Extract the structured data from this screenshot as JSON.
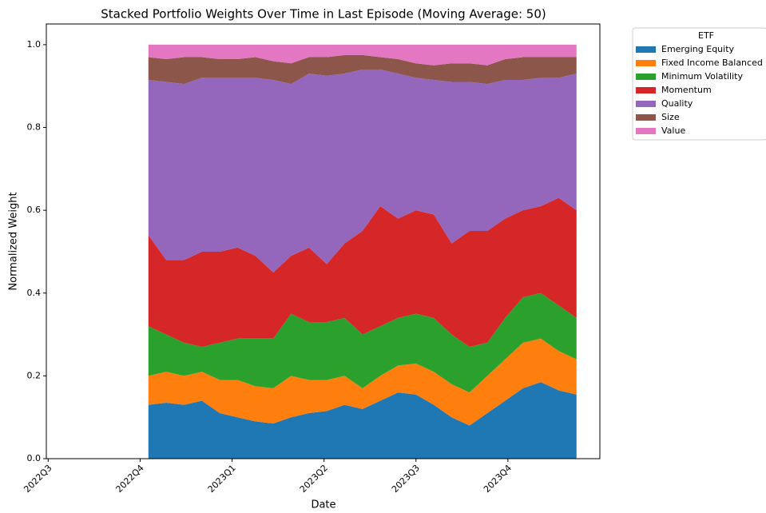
{
  "chart_data": {
    "type": "stacked_area",
    "title": "Stacked Portfolio Weights Over Time in Last Episode (Moving Average: 50)",
    "xlabel": "Date",
    "ylabel": "Normalized Weight",
    "legend_title": "ETF",
    "legend": "outside upper right",
    "x": [
      1.09,
      1.284,
      1.478,
      1.672,
      1.866,
      2.06,
      2.254,
      2.448,
      2.642,
      2.836,
      3.03,
      3.224,
      3.418,
      3.612,
      3.806,
      4.0,
      4.194,
      4.388,
      4.582,
      4.776,
      4.97,
      5.164,
      5.358,
      5.552,
      5.746
    ],
    "xlim": [
      -0.02,
      6.0
    ],
    "xticks": [
      {
        "value": 0,
        "label": "2022Q3"
      },
      {
        "value": 1,
        "label": "2022Q4"
      },
      {
        "value": 2,
        "label": "2023Q1"
      },
      {
        "value": 3,
        "label": "2023Q2"
      },
      {
        "value": 4,
        "label": "2023Q3"
      },
      {
        "value": 5,
        "label": "2023Q4"
      }
    ],
    "ylim": [
      0,
      1.05
    ],
    "yticks": [
      {
        "value": 0,
        "label": "0.0"
      },
      0.2,
      0.4,
      0.6,
      0.8,
      {
        "value": 1,
        "label": "1.0"
      }
    ],
    "series": [
      {
        "name": "Emerging Equity",
        "color": "#1f77b4",
        "values": [
          0.13,
          0.135,
          0.13,
          0.14,
          0.11,
          0.1,
          0.09,
          0.085,
          0.1,
          0.11,
          0.115,
          0.13,
          0.12,
          0.14,
          0.16,
          0.155,
          0.13,
          0.1,
          0.08,
          0.11,
          0.14,
          0.17,
          0.185,
          0.165,
          0.155
        ]
      },
      {
        "name": "Fixed Income Balanced",
        "color": "#ff7f0e",
        "values": [
          0.07,
          0.075,
          0.07,
          0.07,
          0.08,
          0.09,
          0.085,
          0.085,
          0.1,
          0.08,
          0.075,
          0.07,
          0.05,
          0.06,
          0.065,
          0.075,
          0.08,
          0.08,
          0.08,
          0.09,
          0.1,
          0.11,
          0.105,
          0.095,
          0.085
        ]
      },
      {
        "name": "Minimum Volatility",
        "color": "#2ca02c",
        "values": [
          0.12,
          0.09,
          0.08,
          0.06,
          0.09,
          0.1,
          0.115,
          0.12,
          0.15,
          0.14,
          0.14,
          0.14,
          0.13,
          0.12,
          0.115,
          0.12,
          0.13,
          0.12,
          0.11,
          0.08,
          0.1,
          0.11,
          0.11,
          0.11,
          0.1
        ]
      },
      {
        "name": "Momentum",
        "color": "#d62728",
        "values": [
          0.22,
          0.18,
          0.2,
          0.23,
          0.22,
          0.22,
          0.2,
          0.16,
          0.14,
          0.18,
          0.14,
          0.18,
          0.25,
          0.29,
          0.24,
          0.25,
          0.25,
          0.22,
          0.28,
          0.27,
          0.24,
          0.21,
          0.21,
          0.26,
          0.26
        ]
      },
      {
        "name": "Quality",
        "color": "#9467bd",
        "values": [
          0.375,
          0.43,
          0.425,
          0.42,
          0.42,
          0.41,
          0.43,
          0.465,
          0.415,
          0.42,
          0.455,
          0.41,
          0.39,
          0.33,
          0.35,
          0.32,
          0.325,
          0.39,
          0.36,
          0.355,
          0.335,
          0.315,
          0.31,
          0.29,
          0.33
        ]
      },
      {
        "name": "Size",
        "color": "#8c564b",
        "values": [
          0.055,
          0.055,
          0.065,
          0.05,
          0.045,
          0.045,
          0.05,
          0.045,
          0.05,
          0.04,
          0.045,
          0.045,
          0.035,
          0.03,
          0.035,
          0.035,
          0.035,
          0.045,
          0.045,
          0.045,
          0.05,
          0.055,
          0.05,
          0.05,
          0.04
        ]
      },
      {
        "name": "Value",
        "color": "#e377c2",
        "values": [
          0.03,
          0.035,
          0.03,
          0.03,
          0.035,
          0.035,
          0.03,
          0.04,
          0.045,
          0.03,
          0.03,
          0.025,
          0.025,
          0.03,
          0.035,
          0.045,
          0.05,
          0.045,
          0.045,
          0.05,
          0.035,
          0.03,
          0.03,
          0.03,
          0.03
        ]
      }
    ]
  }
}
